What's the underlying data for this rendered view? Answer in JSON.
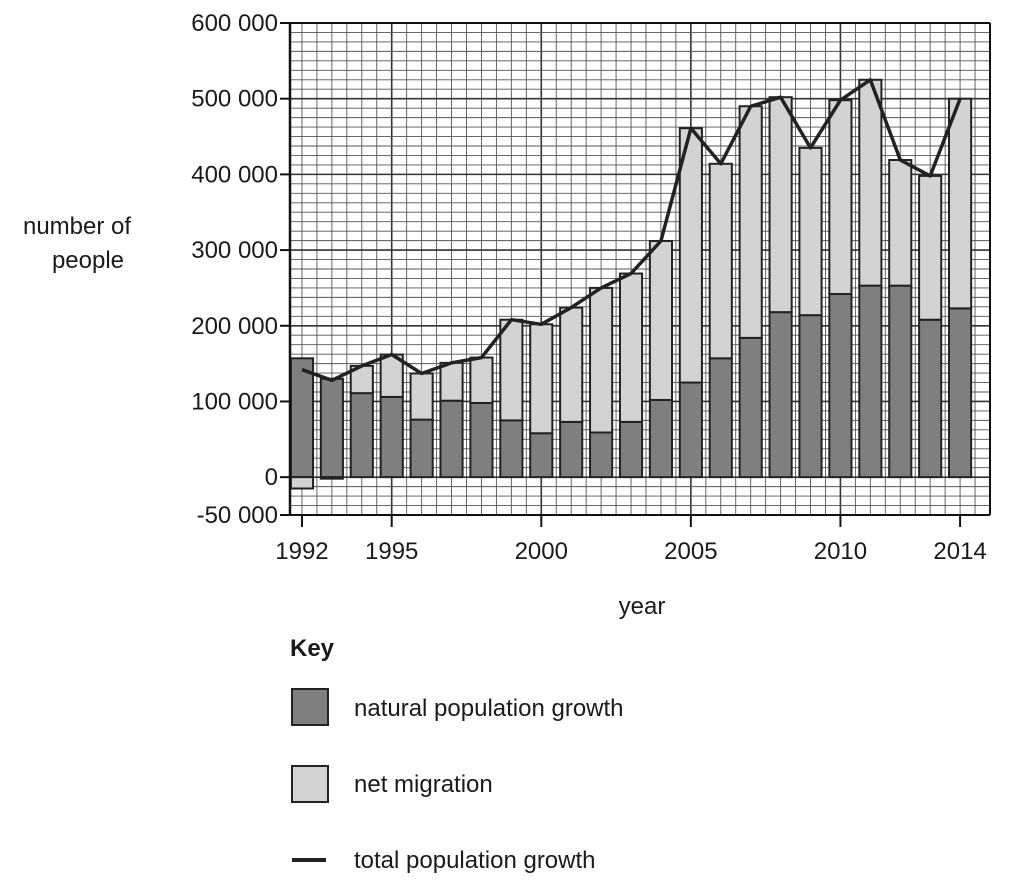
{
  "chart_data": {
    "type": "bar",
    "stacked": true,
    "ylabel": [
      "number of",
      "people"
    ],
    "xlabel": "year",
    "ylim": [
      -50000,
      600000
    ],
    "y_ticks": [
      -50000,
      0,
      100000,
      200000,
      300000,
      400000,
      500000,
      600000
    ],
    "y_tick_labels": [
      "-50 000",
      "0",
      "100 000",
      "200 000",
      "300 000",
      "400 000",
      "500 000",
      "600 000"
    ],
    "x_ticks": [
      1992,
      1995,
      2000,
      2005,
      2010,
      2014
    ],
    "x_tick_labels": [
      "1992",
      "1995",
      "2000",
      "2005",
      "2010",
      "2014"
    ],
    "grid": true,
    "categories": [
      1992,
      1993,
      1994,
      1995,
      1996,
      1997,
      1998,
      1999,
      2000,
      2001,
      2002,
      2003,
      2004,
      2005,
      2006,
      2007,
      2008,
      2009,
      2010,
      2011,
      2012,
      2013,
      2014
    ],
    "series": [
      {
        "name": "natural population growth",
        "color": "#7f7f7f",
        "values": [
          157000,
          130000,
          111000,
          106000,
          76000,
          101000,
          98000,
          75000,
          58000,
          73000,
          59000,
          73000,
          102000,
          125000,
          157000,
          184000,
          218000,
          214000,
          242000,
          253000,
          253000,
          208000,
          223000
        ]
      },
      {
        "name": "net migration",
        "color": "#d3d3d3",
        "values": [
          -15000,
          -2000,
          36000,
          56000,
          61000,
          50000,
          60000,
          133000,
          144000,
          151000,
          191000,
          196000,
          210000,
          336000,
          257000,
          306000,
          284000,
          221000,
          256000,
          272000,
          166000,
          190000,
          277000
        ]
      }
    ],
    "line": {
      "name": "total population growth",
      "color": "#222222",
      "values": [
        142000,
        128000,
        147000,
        162000,
        137000,
        151000,
        158000,
        208000,
        202000,
        224000,
        250000,
        269000,
        312000,
        461000,
        414000,
        490000,
        502000,
        435000,
        498000,
        525000,
        419000,
        398000,
        500000
      ]
    },
    "legend": {
      "title": "Key",
      "placement": "bottom",
      "entries": [
        "natural population growth",
        "net migration",
        "total population growth"
      ]
    }
  }
}
